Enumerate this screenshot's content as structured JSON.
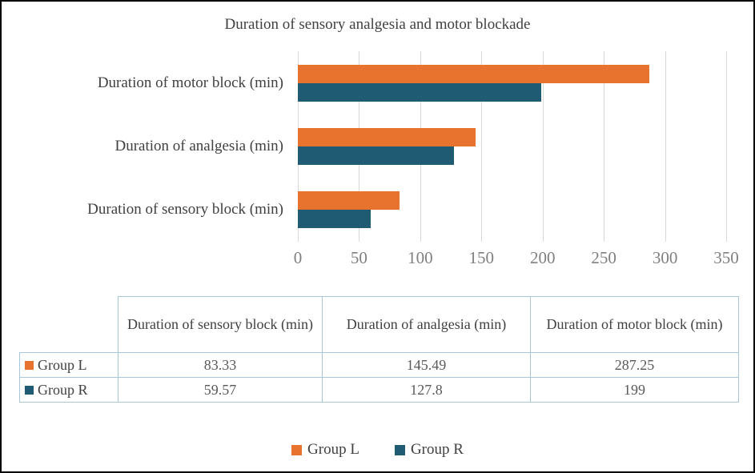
{
  "chart_data": {
    "type": "bar",
    "orientation": "horizontal",
    "title": "Duration of sensory analgesia and motor blockade",
    "categories": [
      "Duration of motor block (min)",
      "Duration of analgesia (min)",
      "Duration of sensory block (min)"
    ],
    "series": [
      {
        "name": "Group L",
        "color": "#E8732E",
        "values": [
          287.25,
          145.49,
          83.33
        ]
      },
      {
        "name": "Group R",
        "color": "#1F5B73",
        "values": [
          199,
          127.8,
          59.57
        ]
      }
    ],
    "xlim": [
      0,
      350
    ],
    "x_ticks": [
      0,
      50,
      100,
      150,
      200,
      250,
      300,
      350
    ],
    "x_tick_labels": [
      "0",
      "50",
      "100",
      "150",
      "200",
      "250",
      "300",
      "350"
    ],
    "grid": true,
    "gridline_color": "#D9D9D9",
    "legend_position": "bottom"
  },
  "table": {
    "columns": [
      "Duration of sensory block (min)",
      "Duration of analgesia (min)",
      "Duration of motor block (min)"
    ],
    "rows": [
      {
        "label": "Group L",
        "swatch_color": "#E8732E",
        "values": [
          "83.33",
          "145.49",
          "287.25"
        ]
      },
      {
        "label": "Group R",
        "swatch_color": "#1F5B73",
        "values": [
          "59.57",
          "127.8",
          "199"
        ]
      }
    ]
  },
  "legend": {
    "items": [
      {
        "label": "Group L",
        "color": "#E8732E"
      },
      {
        "label": "Group R",
        "color": "#1F5B73"
      }
    ]
  }
}
